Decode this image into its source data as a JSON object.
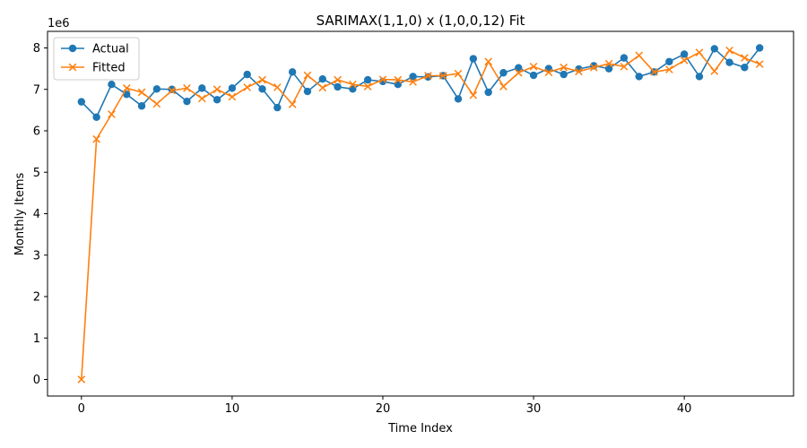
{
  "chart_data": {
    "type": "line",
    "title": "SARIMAX(1,1,0) x (1,0,0,12) Fit",
    "xlabel": "Time Index",
    "ylabel": "Monthly Items",
    "y_multiplier_label": "1e6",
    "xlim": [
      -2.25,
      47.25
    ],
    "ylim": [
      -400000,
      8400000
    ],
    "xticks": [
      0,
      10,
      20,
      30,
      40
    ],
    "yticks": [
      0,
      1000000,
      2000000,
      3000000,
      4000000,
      5000000,
      6000000,
      7000000,
      8000000
    ],
    "ytick_labels": [
      "0",
      "1",
      "2",
      "3",
      "4",
      "5",
      "6",
      "7",
      "8"
    ],
    "grid": false,
    "legend_position": "top-left",
    "x": [
      0,
      1,
      2,
      3,
      4,
      5,
      6,
      7,
      8,
      9,
      10,
      11,
      12,
      13,
      14,
      15,
      16,
      17,
      18,
      19,
      20,
      21,
      22,
      23,
      24,
      25,
      26,
      27,
      28,
      29,
      30,
      31,
      32,
      33,
      34,
      35,
      36,
      37,
      38,
      39,
      40,
      41,
      42,
      43,
      44,
      45
    ],
    "series": [
      {
        "name": "Actual",
        "color": "#1f77b4",
        "marker": "circle",
        "values": [
          6700000,
          6330000,
          7120000,
          6880000,
          6600000,
          7010000,
          7000000,
          6710000,
          7030000,
          6750000,
          7030000,
          7360000,
          7010000,
          6560000,
          7420000,
          6950000,
          7250000,
          7060000,
          7010000,
          7230000,
          7190000,
          7120000,
          7310000,
          7300000,
          7330000,
          6770000,
          7740000,
          6930000,
          7400000,
          7520000,
          7340000,
          7500000,
          7360000,
          7490000,
          7570000,
          7500000,
          7760000,
          7310000,
          7420000,
          7670000,
          7850000,
          7310000,
          7980000,
          7650000,
          7530000,
          8000000
        ]
      },
      {
        "name": "Fitted",
        "color": "#ff7f0e",
        "marker": "x",
        "values": [
          0,
          5800000,
          6400000,
          7030000,
          6930000,
          6650000,
          6970000,
          7030000,
          6780000,
          7000000,
          6820000,
          7050000,
          7230000,
          7050000,
          6640000,
          7340000,
          7040000,
          7230000,
          7120000,
          7070000,
          7240000,
          7230000,
          7180000,
          7330000,
          7330000,
          7380000,
          6860000,
          7670000,
          7070000,
          7400000,
          7550000,
          7410000,
          7530000,
          7430000,
          7530000,
          7620000,
          7550000,
          7820000,
          7420000,
          7480000,
          7700000,
          7890000,
          7440000,
          7940000,
          7760000,
          7610000
        ]
      }
    ]
  }
}
